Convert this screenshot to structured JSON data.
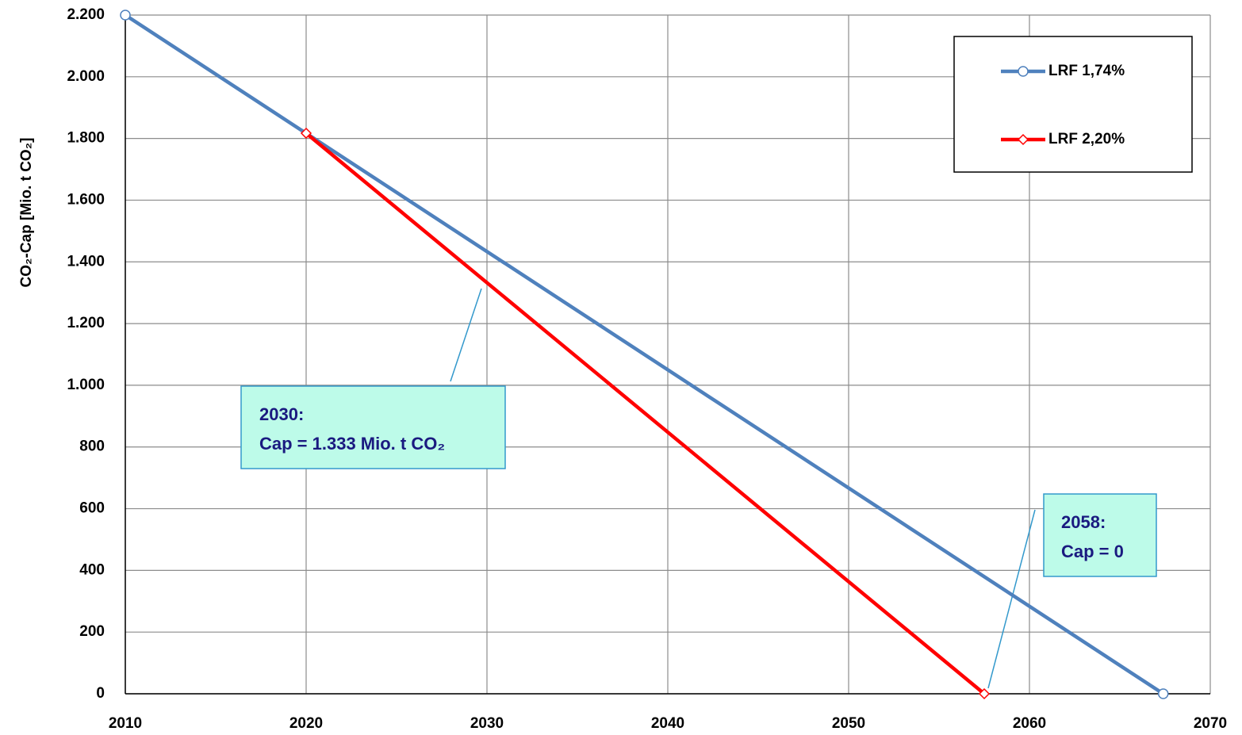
{
  "chart_data": {
    "type": "line",
    "y_label": "CO₂-Cap [Mio. t CO₂]",
    "series": [
      {
        "name": "LRF 1,74%",
        "color": "#4f81bd",
        "marker": "circle",
        "x": [
          2010,
          2067.4
        ],
        "values": [
          2200,
          0
        ]
      },
      {
        "name": "LRF 2,20%",
        "color": "#ff0000",
        "marker": "diamond",
        "x": [
          2020,
          2057.5
        ],
        "values": [
          1817,
          0
        ]
      }
    ],
    "xlim": [
      2010,
      2070
    ],
    "xticks": [
      2010,
      2020,
      2030,
      2040,
      2050,
      2060,
      2070
    ],
    "ylim": [
      0,
      2200
    ],
    "yticks": [
      0,
      200,
      400,
      600,
      800,
      {
        "value": 1000,
        "label": "1.000"
      },
      {
        "value": 1200,
        "label": "1.200"
      },
      {
        "value": 1400,
        "label": "1.400"
      },
      {
        "value": 1600,
        "label": "1.600"
      },
      {
        "value": 1800,
        "label": "1.800"
      },
      {
        "value": 2000,
        "label": "2.000"
      },
      {
        "value": 2200,
        "label": "2.200"
      }
    ],
    "grid": true,
    "legend": "upper right",
    "annotations": [
      {
        "lines": [
          "2030:",
          "Cap = 1.333 Mio. t CO₂"
        ]
      },
      {
        "lines": [
          "2058:",
          "Cap = 0"
        ]
      }
    ]
  }
}
